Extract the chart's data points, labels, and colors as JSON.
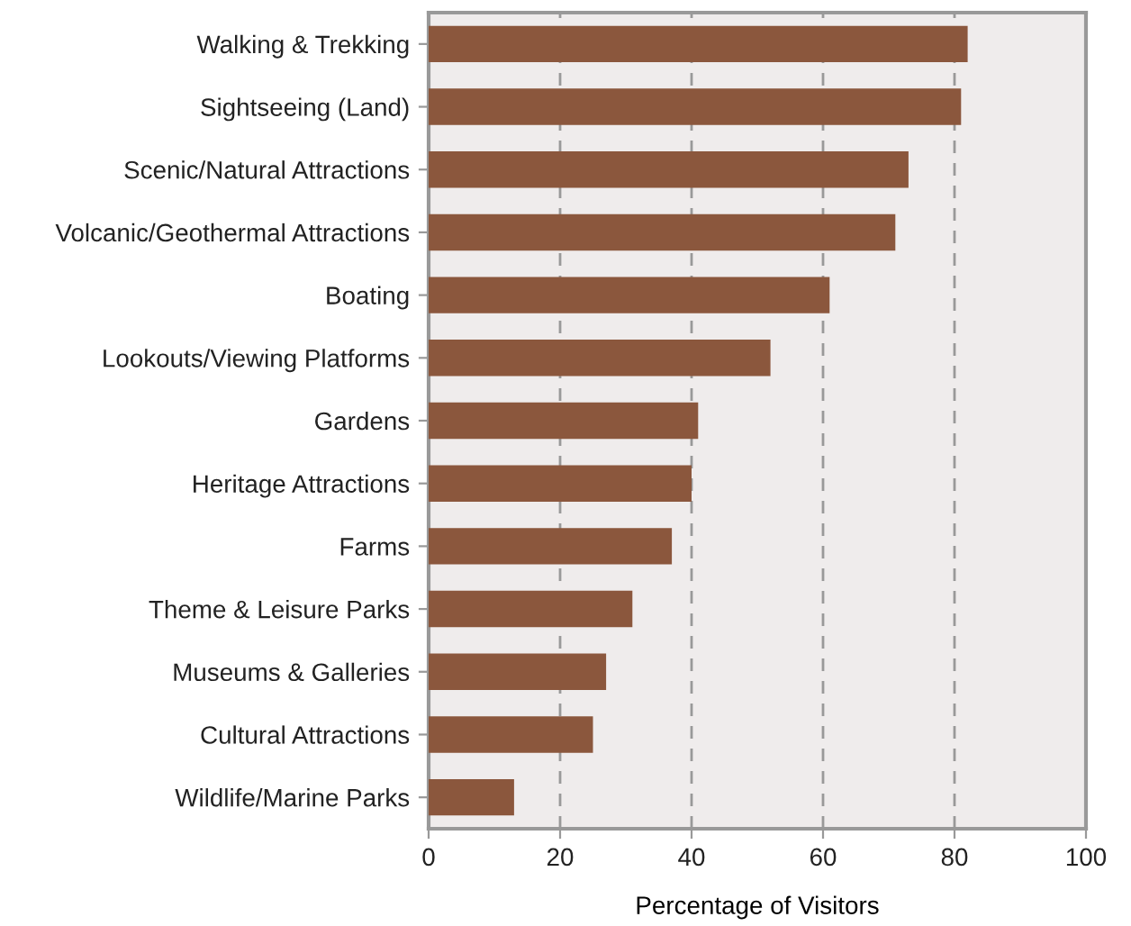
{
  "chart_data": {
    "type": "bar",
    "orientation": "horizontal",
    "xlabel": "Percentage of Visitors",
    "categories": [
      "Walking & Trekking",
      "Sightseeing (Land)",
      "Scenic/Natural Attractions",
      "Volcanic/Geothermal Attractions",
      "Boating",
      "Lookouts/Viewing Platforms",
      "Gardens",
      "Heritage Attractions",
      "Farms",
      "Theme & Leisure Parks",
      "Museums & Galleries",
      "Cultural Attractions",
      "Wildlife/Marine Parks"
    ],
    "values": [
      82,
      81,
      73,
      71,
      61,
      52,
      41,
      40,
      37,
      31,
      27,
      25,
      13
    ],
    "color": "#8b573d",
    "xlim": [
      0,
      100
    ],
    "xticks": [
      0,
      20,
      40,
      60,
      80,
      100
    ],
    "grid": "x",
    "line_style": "dashed"
  }
}
